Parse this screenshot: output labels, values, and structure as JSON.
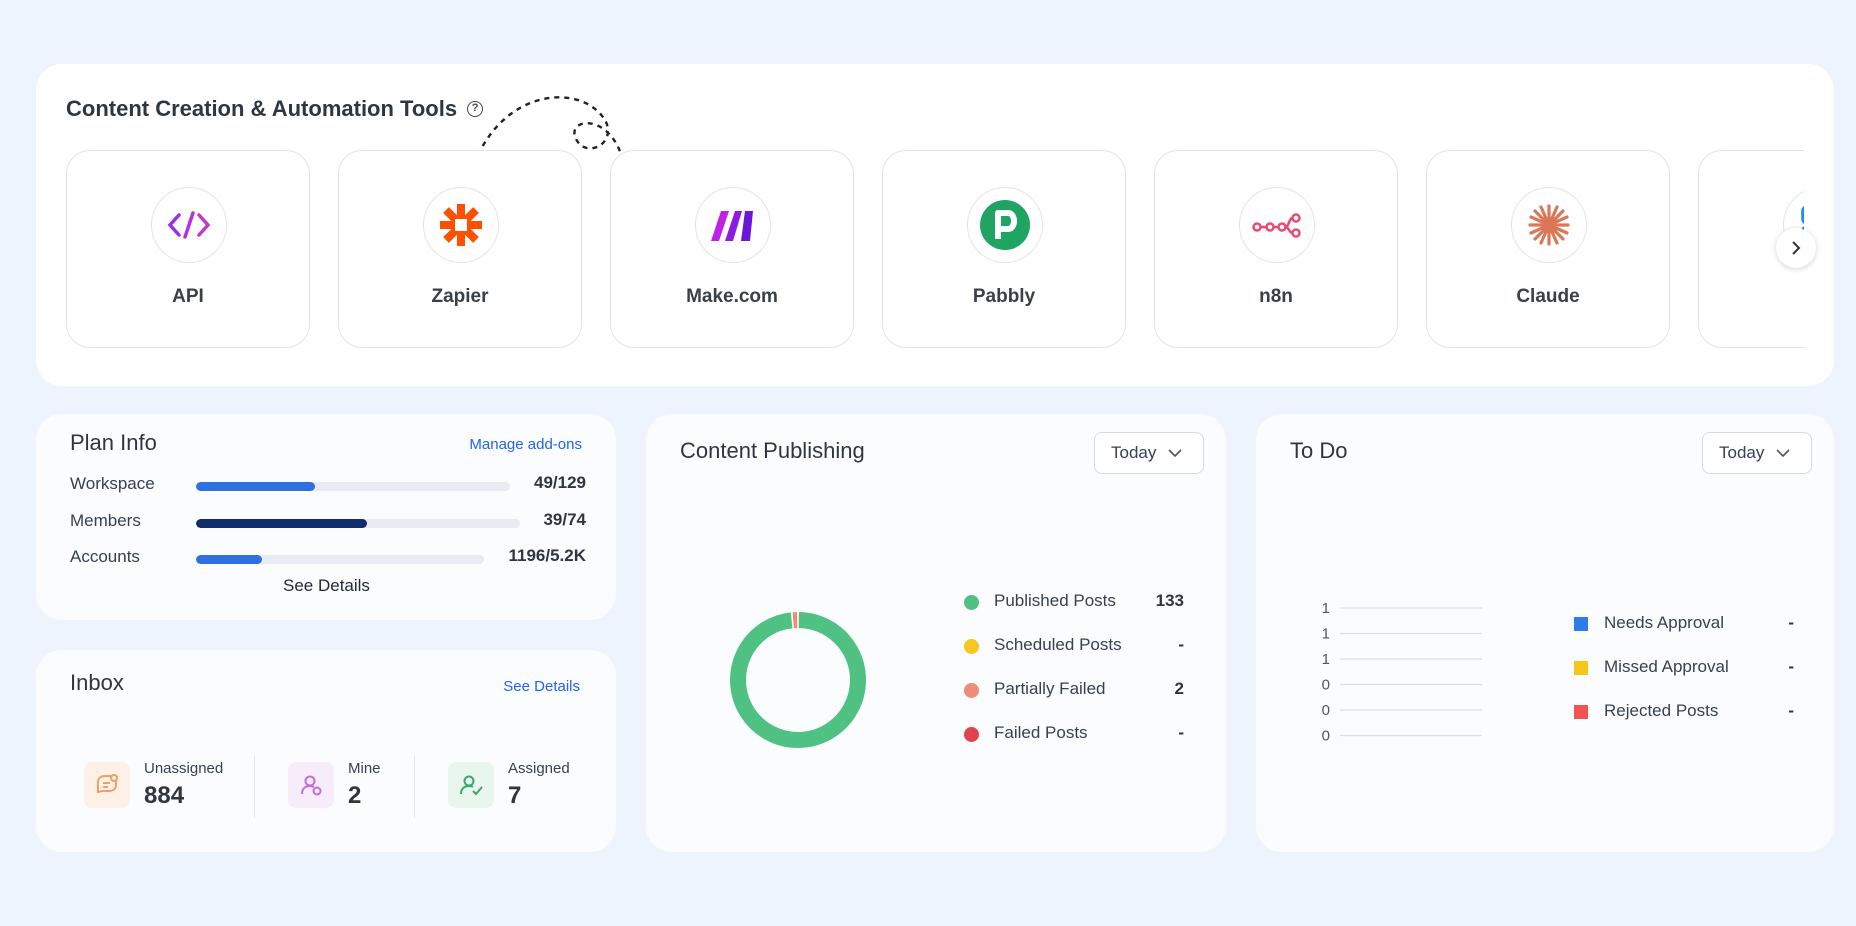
{
  "tools": {
    "title": "Content Creation & Automation Tools",
    "help_icon": "question-circle-icon",
    "items": [
      {
        "name": "API",
        "icon": "code-brackets-icon",
        "color": "#9b30e8"
      },
      {
        "name": "Zapier",
        "icon": "zapier-asterisk-icon",
        "color": "#ff4f00"
      },
      {
        "name": "Make.com",
        "icon": "make-bars-icon",
        "color": "#a020f0"
      },
      {
        "name": "Pabbly",
        "icon": "pabbly-p-icon",
        "color": "#20a464"
      },
      {
        "name": "n8n",
        "icon": "n8n-nodes-icon",
        "color": "#ea4b71"
      },
      {
        "name": "Claude",
        "icon": "claude-burst-icon",
        "color": "#d97757"
      },
      {
        "name": "",
        "icon": "partial-tool-icon",
        "color": "#1a8ee6"
      }
    ],
    "next_icon": "chevron-right-icon"
  },
  "plan": {
    "title": "Plan Info",
    "manage_link": "Manage add-ons",
    "rows": [
      {
        "label": "Workspace",
        "value": "49/129",
        "fraction": 0.38,
        "color": "#2f6fdf"
      },
      {
        "label": "Members",
        "value": "39/74",
        "fraction": 0.527,
        "color": "#0f2e6b"
      },
      {
        "label": "Accounts",
        "value": "1196/5.2K",
        "fraction": 0.23,
        "color": "#2f6fdf"
      }
    ],
    "see_details": "See Details"
  },
  "inbox": {
    "title": "Inbox",
    "see_details": "See Details",
    "stats": [
      {
        "label": "Unassigned",
        "value": "884",
        "icon": "chat-bubble-icon",
        "color": "#f59e63",
        "bg": "#fdf0e6"
      },
      {
        "label": "Mine",
        "value": "2",
        "icon": "user-circle-icon",
        "color": "#c26ce0",
        "bg": "#f6ecfa"
      },
      {
        "label": "Assigned",
        "value": "7",
        "icon": "user-check-icon",
        "color": "#3aa76d",
        "bg": "#e8f6ee"
      }
    ]
  },
  "publishing": {
    "title": "Content Publishing",
    "dropdown": "Today",
    "legend": [
      {
        "label": "Published Posts",
        "value": "133",
        "color": "#4fc283"
      },
      {
        "label": "Scheduled Posts",
        "value": "-",
        "color": "#f6c623"
      },
      {
        "label": "Partially Failed",
        "value": "2",
        "color": "#f08a7c"
      },
      {
        "label": "Failed Posts",
        "value": "-",
        "color": "#e0434f"
      }
    ],
    "chart_data": {
      "type": "pie",
      "categories": [
        "Published Posts",
        "Scheduled Posts",
        "Partially Failed",
        "Failed Posts"
      ],
      "values": [
        133,
        0,
        2,
        0
      ]
    }
  },
  "todo": {
    "title": "To Do",
    "dropdown": "Today",
    "axis_ticks": [
      "1",
      "1",
      "1",
      "0",
      "0",
      "0"
    ],
    "legend": [
      {
        "label": "Needs Approval",
        "value": "-",
        "color": "#2b7de9"
      },
      {
        "label": "Missed Approval",
        "value": "-",
        "color": "#f5c518"
      },
      {
        "label": "Rejected Posts",
        "value": "-",
        "color": "#f05454"
      }
    ]
  }
}
